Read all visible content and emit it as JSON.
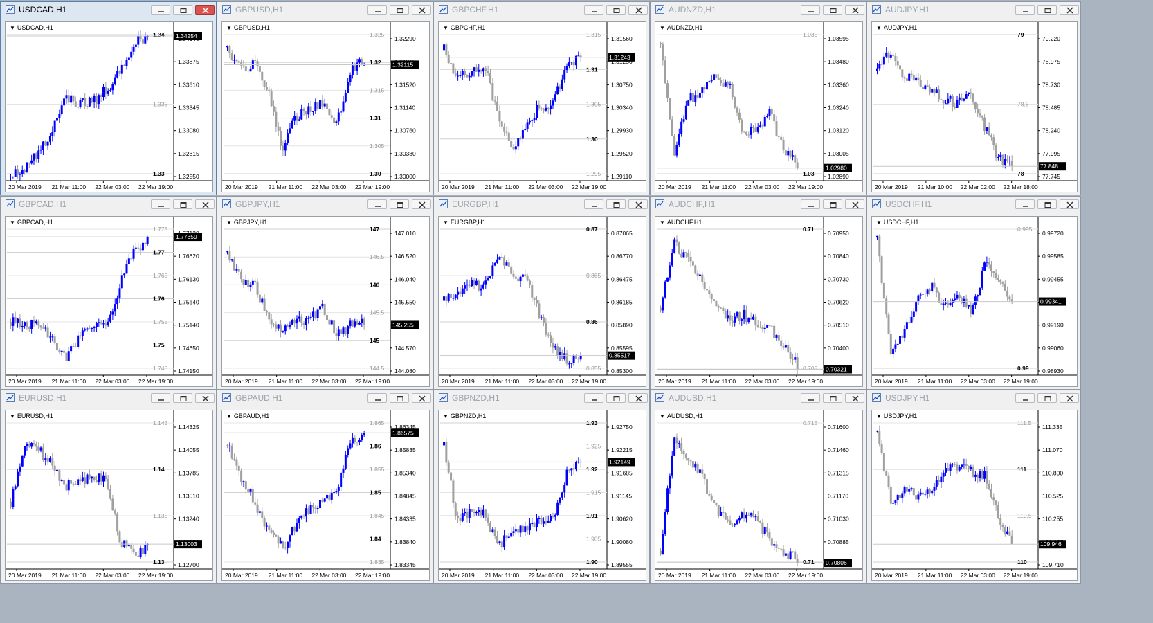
{
  "windows": [
    {
      "title": "USDCAD,H1",
      "symbol": "USDCAD,H1",
      "active": true,
      "price_ticks": [
        "1.34140",
        "1.33875",
        "1.33610",
        "1.33345",
        "1.33080",
        "1.32815",
        "1.32550"
      ],
      "levels": [
        {
          "label": "1.34",
          "style": "major"
        },
        {
          "label": "1.335",
          "style": "minor"
        },
        {
          "label": "1.33",
          "style": "major"
        }
      ],
      "current_price": "1.34254",
      "time_labels": [
        "20 Mar 2019",
        "21 Mar 11:00",
        "22 Mar 03:00",
        "22 Mar 19:00"
      ],
      "price_range": [
        1.3252,
        1.3435
      ],
      "shape": [
        0.0,
        0.05,
        0.16,
        0.32,
        0.55,
        0.52,
        0.53,
        0.62,
        0.74,
        0.96,
        0.99
      ]
    },
    {
      "title": "GBPUSD,H1",
      "symbol": "GBPUSD,H1",
      "active": false,
      "price_ticks": [
        "1.32290",
        "1.31910",
        "1.31520",
        "1.31140",
        "1.30760",
        "1.30380",
        "1.30000"
      ],
      "levels": [
        {
          "label": "1.325",
          "style": "minor"
        },
        {
          "label": "1.32",
          "style": "major"
        },
        {
          "label": "1.315",
          "style": "minor"
        },
        {
          "label": "1.31",
          "style": "major"
        },
        {
          "label": "1.305",
          "style": "minor"
        },
        {
          "label": "1.30",
          "style": "major"
        }
      ],
      "current_price": "1.32115",
      "time_labels": [
        "20 Mar 2019",
        "21 Mar 11:00",
        "22 Mar 03:00",
        "22 Mar 19:00"
      ],
      "price_range": [
        1.2995,
        1.3262
      ],
      "shape": [
        0.92,
        0.75,
        0.82,
        0.6,
        0.2,
        0.42,
        0.48,
        0.52,
        0.38,
        0.75,
        0.82
      ]
    },
    {
      "title": "GBPCHF,H1",
      "symbol": "GBPCHF,H1",
      "active": false,
      "price_ticks": [
        "1.31560",
        "1.31250",
        "1.30750",
        "1.30340",
        "1.29930",
        "1.29520",
        "1.29110"
      ],
      "levels": [
        {
          "label": "1.315",
          "style": "minor"
        },
        {
          "label": "1.31",
          "style": "major"
        },
        {
          "label": "1.305",
          "style": "minor"
        },
        {
          "label": "1.30",
          "style": "major"
        },
        {
          "label": "1.295",
          "style": "minor"
        }
      ],
      "current_price": "1.31243",
      "time_labels": [
        "20 Mar 2019",
        "21 Mar 11:00",
        "22 Mar 03:00",
        "22 Mar 19:00"
      ],
      "price_range": [
        1.2905,
        1.3172
      ],
      "shape": [
        0.9,
        0.7,
        0.75,
        0.78,
        0.42,
        0.18,
        0.38,
        0.5,
        0.52,
        0.8,
        0.84
      ]
    },
    {
      "title": "AUDNZD,H1",
      "symbol": "AUDNZD,H1",
      "active": false,
      "price_ticks": [
        "1.03595",
        "1.03480",
        "1.03360",
        "1.03240",
        "1.03120",
        "1.03005",
        "1.02890"
      ],
      "levels": [
        {
          "label": "1.035",
          "style": "minor"
        },
        {
          "label": "1.03",
          "style": "major"
        }
      ],
      "current_price": "1.02980",
      "time_labels": [
        "20 Mar 2019",
        "21 Mar 11:00",
        "22 Mar 03:00",
        "22 Mar 19:00"
      ],
      "price_range": [
        1.0285,
        1.0365
      ],
      "shape": [
        0.95,
        0.15,
        0.55,
        0.6,
        0.7,
        0.66,
        0.3,
        0.32,
        0.45,
        0.18,
        0.1
      ]
    },
    {
      "title": "AUDJPY,H1",
      "symbol": "AUDJPY,H1",
      "active": false,
      "price_ticks": [
        "79.220",
        "78.975",
        "78.730",
        "78.485",
        "78.240",
        "77.995",
        "77.745"
      ],
      "levels": [
        {
          "label": "79",
          "style": "major"
        },
        {
          "label": "78.5",
          "style": "minor"
        },
        {
          "label": "78",
          "style": "major"
        }
      ],
      "current_price": "77.848",
      "time_labels": [
        "20 Mar 2019",
        "21 Mar 10:00",
        "22 Mar 02:00",
        "22 Mar 18:00"
      ],
      "price_range": [
        77.72,
        79.33
      ],
      "shape": [
        0.75,
        0.9,
        0.72,
        0.7,
        0.6,
        0.55,
        0.52,
        0.58,
        0.35,
        0.12,
        0.08
      ]
    },
    {
      "title": "GBPCAD,H1",
      "symbol": "GBPCAD,H1",
      "active": false,
      "price_ticks": [
        "1.77120",
        "1.76620",
        "1.76130",
        "1.75640",
        "1.75140",
        "1.74650",
        "1.74150"
      ],
      "levels": [
        {
          "label": "1.775",
          "style": "minor"
        },
        {
          "label": "1.77",
          "style": "major"
        },
        {
          "label": "1.765",
          "style": "minor"
        },
        {
          "label": "1.76",
          "style": "major"
        },
        {
          "label": "1.755",
          "style": "minor"
        },
        {
          "label": "1.75",
          "style": "major"
        },
        {
          "label": "1.745",
          "style": "minor"
        }
      ],
      "current_price": "1.77359",
      "time_labels": [
        "20 Mar 2019",
        "21 Mar 11:00",
        "22 Mar 03:00",
        "22 Mar 19:00"
      ],
      "price_range": [
        1.7405,
        1.7755
      ],
      "shape": [
        0.35,
        0.32,
        0.36,
        0.22,
        0.1,
        0.24,
        0.34,
        0.3,
        0.62,
        0.85,
        0.93
      ]
    },
    {
      "title": "GBPJPY,H1",
      "symbol": "GBPJPY,H1",
      "active": false,
      "price_ticks": [
        "147.010",
        "146.520",
        "146.040",
        "145.550",
        "145.060",
        "144.570",
        "144.080"
      ],
      "levels": [
        {
          "label": "147",
          "style": "major"
        },
        {
          "label": "146.5",
          "style": "minor"
        },
        {
          "label": "146",
          "style": "major"
        },
        {
          "label": "145.5",
          "style": "minor"
        },
        {
          "label": "145",
          "style": "major"
        },
        {
          "label": "144.5",
          "style": "minor"
        }
      ],
      "current_price": "145.255",
      "time_labels": [
        "20 Mar 2019",
        "21 Mar 11:00",
        "22 Mar 03:00",
        "22 Mar 19:00"
      ],
      "price_range": [
        143.95,
        147.4
      ],
      "shape": [
        0.85,
        0.65,
        0.6,
        0.38,
        0.3,
        0.34,
        0.38,
        0.45,
        0.25,
        0.32,
        0.35
      ]
    },
    {
      "title": "EURGBP,H1",
      "symbol": "EURGBP,H1",
      "active": false,
      "price_ticks": [
        "0.87065",
        "0.86770",
        "0.86475",
        "0.86185",
        "0.85890",
        "0.85595",
        "0.85300"
      ],
      "levels": [
        {
          "label": "0.87",
          "style": "major"
        },
        {
          "label": "0.865",
          "style": "minor"
        },
        {
          "label": "0.86",
          "style": "major"
        },
        {
          "label": "0.855",
          "style": "minor"
        }
      ],
      "current_price": "0.85517",
      "time_labels": [
        "20 Mar 2019",
        "21 Mar 11:00",
        "22 Mar 03:00",
        "22 Mar 19:00"
      ],
      "price_range": [
        0.8525,
        0.8745
      ],
      "shape": [
        0.5,
        0.58,
        0.62,
        0.6,
        0.82,
        0.7,
        0.65,
        0.4,
        0.15,
        0.08,
        0.1
      ]
    },
    {
      "title": "AUDCHF,H1",
      "symbol": "AUDCHF,H1",
      "active": false,
      "price_ticks": [
        "0.70950",
        "0.70840",
        "0.70730",
        "0.70620",
        "0.70510",
        "0.70400",
        "0.70290"
      ],
      "levels": [
        {
          "label": "0.71",
          "style": "major"
        },
        {
          "label": "0.705",
          "style": "minor"
        }
      ],
      "current_price": "0.70321",
      "time_labels": [
        "20 Mar 2019",
        "21 Mar 11:00",
        "22 Mar 03:00",
        "22 Mar 19:00"
      ],
      "price_range": [
        0.7025,
        0.7108
      ],
      "shape": [
        0.45,
        0.9,
        0.8,
        0.65,
        0.45,
        0.35,
        0.4,
        0.35,
        0.3,
        0.18,
        0.05
      ]
    },
    {
      "title": "USDCHF,H1",
      "symbol": "USDCHF,H1",
      "active": false,
      "price_ticks": [
        "0.99720",
        "0.99585",
        "0.99455",
        "0.99320",
        "0.99190",
        "0.99060",
        "0.98930"
      ],
      "levels": [
        {
          "label": "0.995",
          "style": "minor"
        },
        {
          "label": "0.99",
          "style": "major"
        }
      ],
      "current_price": "0.99341",
      "time_labels": [
        "20 Mar 2019",
        "21 Mar 11:00",
        "22 Mar 03:00",
        "22 Mar 19:00"
      ],
      "price_range": [
        0.9888,
        0.9982
      ],
      "shape": [
        0.95,
        0.1,
        0.28,
        0.5,
        0.6,
        0.45,
        0.55,
        0.42,
        0.75,
        0.65,
        0.5
      ]
    },
    {
      "title": "EURUSD,H1",
      "symbol": "EURUSD,H1",
      "active": false,
      "price_ticks": [
        "1.14325",
        "1.14055",
        "1.13785",
        "1.13510",
        "1.13240",
        "1.12970",
        "1.12700"
      ],
      "levels": [
        {
          "label": "1.145",
          "style": "minor"
        },
        {
          "label": "1.14",
          "style": "major"
        },
        {
          "label": "1.135",
          "style": "minor"
        },
        {
          "label": "1.13",
          "style": "major"
        }
      ],
      "current_price": "1.13003",
      "time_labels": [
        "20 Mar 2019",
        "21 Mar 11:00",
        "22 Mar 03:00",
        "22 Mar 19:00"
      ],
      "price_range": [
        1.1265,
        1.146
      ],
      "shape": [
        0.45,
        0.85,
        0.82,
        0.72,
        0.55,
        0.62,
        0.6,
        0.62,
        0.18,
        0.08,
        0.12
      ]
    },
    {
      "title": "GBPAUD,H1",
      "symbol": "GBPAUD,H1",
      "active": false,
      "price_ticks": [
        "1.86345",
        "1.85835",
        "1.85340",
        "1.84845",
        "1.84335",
        "1.83840",
        "1.83345"
      ],
      "levels": [
        {
          "label": "1.865",
          "style": "minor"
        },
        {
          "label": "1.86",
          "style": "major"
        },
        {
          "label": "1.855",
          "style": "minor"
        },
        {
          "label": "1.85",
          "style": "major"
        },
        {
          "label": "1.845",
          "style": "minor"
        },
        {
          "label": "1.84",
          "style": "major"
        },
        {
          "label": "1.835",
          "style": "minor"
        }
      ],
      "current_price": "1.86575",
      "time_labels": [
        "20 Mar 2019",
        "21 Mar 11:00",
        "22 Mar 03:00",
        "22 Mar 19:00"
      ],
      "price_range": [
        1.8325,
        1.8675
      ],
      "shape": [
        0.85,
        0.62,
        0.45,
        0.22,
        0.12,
        0.28,
        0.4,
        0.45,
        0.55,
        0.85,
        0.96
      ]
    },
    {
      "title": "GBPNZD,H1",
      "symbol": "GBPNZD,H1",
      "active": false,
      "price_ticks": [
        "1.92750",
        "1.92215",
        "1.91685",
        "1.91145",
        "1.90620",
        "1.90080",
        "1.89555"
      ],
      "levels": [
        {
          "label": "1.93",
          "style": "major"
        },
        {
          "label": "1.925",
          "style": "minor"
        },
        {
          "label": "1.92",
          "style": "major"
        },
        {
          "label": "1.915",
          "style": "minor"
        },
        {
          "label": "1.91",
          "style": "major"
        },
        {
          "label": "1.905",
          "style": "minor"
        },
        {
          "label": "1.90",
          "style": "major"
        }
      ],
      "current_price": "1.92149",
      "time_labels": [
        "20 Mar 2019",
        "21 Mar 11:00",
        "22 Mar 03:00",
        "22 Mar 19:00"
      ],
      "price_range": [
        1.894,
        1.932
      ],
      "shape": [
        0.85,
        0.3,
        0.4,
        0.35,
        0.15,
        0.2,
        0.28,
        0.32,
        0.35,
        0.65,
        0.72
      ]
    },
    {
      "title": "AUDUSD,H1",
      "symbol": "AUDUSD,H1",
      "active": false,
      "price_ticks": [
        "0.71600",
        "0.71460",
        "0.71315",
        "0.71170",
        "0.71030",
        "0.70885",
        "0.70740"
      ],
      "levels": [
        {
          "label": "0.715",
          "style": "minor"
        },
        {
          "label": "0.71",
          "style": "major"
        }
      ],
      "current_price": "0.70806",
      "time_labels": [
        "20 Mar 2019",
        "21 Mar 11:00",
        "22 Mar 03:00",
        "22 Mar 19:00"
      ],
      "price_range": [
        0.707,
        0.7172
      ],
      "shape": [
        0.1,
        0.9,
        0.78,
        0.62,
        0.4,
        0.3,
        0.35,
        0.32,
        0.18,
        0.1,
        0.05
      ]
    },
    {
      "title": "USDJPY,H1",
      "symbol": "USDJPY,H1",
      "active": false,
      "price_ticks": [
        "111.335",
        "111.070",
        "110.800",
        "110.525",
        "110.255",
        "109.985",
        "109.710"
      ],
      "levels": [
        {
          "label": "111.5",
          "style": "minor"
        },
        {
          "label": "111",
          "style": "major"
        },
        {
          "label": "110.5",
          "style": "minor"
        },
        {
          "label": "110",
          "style": "major"
        }
      ],
      "current_price": "109.946",
      "time_labels": [
        "20 Mar 2019",
        "21 Mar 11:00",
        "22 Mar 03:00",
        "22 Mar 19:00"
      ],
      "price_range": [
        109.62,
        111.6
      ],
      "shape": [
        0.95,
        0.45,
        0.52,
        0.5,
        0.55,
        0.68,
        0.7,
        0.66,
        0.65,
        0.35,
        0.15
      ]
    }
  ],
  "colors": {
    "bull": "#0000ff",
    "bear": "#a0a0a0",
    "grid_major": "#d0d0d0",
    "grid_minor": "#e4e4e4",
    "price_tag_bg": "#000000",
    "active_title_bg": "#dde7f2",
    "close_hot": "#d9534f"
  }
}
